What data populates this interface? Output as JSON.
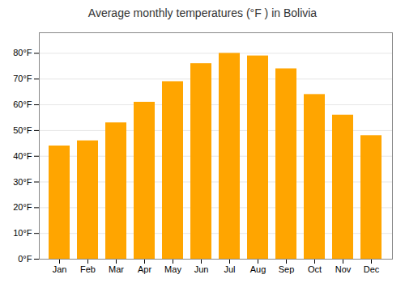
{
  "chart_data": {
    "type": "bar",
    "title": "Average monthly temperatures (°F ) in Bolivia",
    "categories": [
      "Jan",
      "Feb",
      "Mar",
      "Apr",
      "May",
      "Jun",
      "Jul",
      "Aug",
      "Sep",
      "Oct",
      "Nov",
      "Dec"
    ],
    "values": [
      44,
      46,
      53,
      61,
      69,
      76,
      80,
      79,
      74,
      64,
      56,
      48
    ],
    "color": "#FFA500",
    "ylim": [
      0,
      88
    ],
    "yticks": [
      {
        "value": 0,
        "label": "0°F"
      },
      {
        "value": 10,
        "label": "10°F"
      },
      {
        "value": 20,
        "label": "20°F"
      },
      {
        "value": 30,
        "label": "30°F"
      },
      {
        "value": 40,
        "label": "40°F"
      },
      {
        "value": 50,
        "label": "50°F"
      },
      {
        "value": 60,
        "label": "60°F"
      },
      {
        "value": 70,
        "label": "70°F"
      },
      {
        "value": 80,
        "label": "80°F"
      }
    ],
    "grid": true
  }
}
